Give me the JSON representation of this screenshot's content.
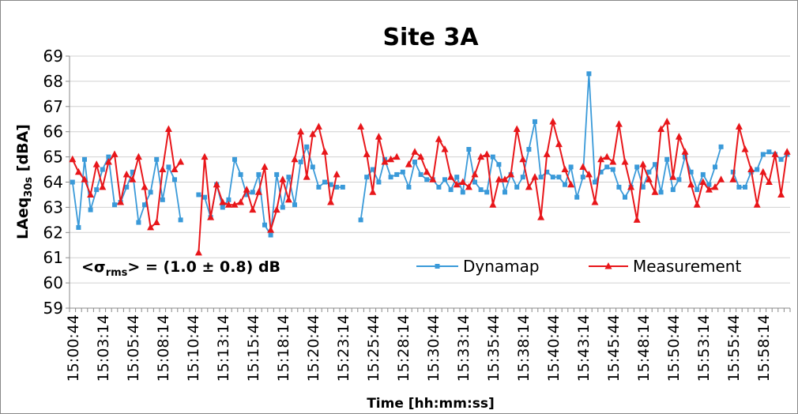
{
  "chart_data": {
    "type": "line",
    "title": "Site 3A",
    "x_label": "Time [hh:mm:ss]",
    "y_label": {
      "main": "LAeq",
      "sub": "30s",
      "unit": " [dBA]"
    },
    "annotation": {
      "pre": "<σ",
      "sub": "rms",
      "post": "> = (1.0 ± 0.8) dB"
    },
    "legend": "inside-bottom-right",
    "grid": true,
    "ylim": [
      59,
      69
    ],
    "yticks": [
      59,
      60,
      61,
      62,
      63,
      64,
      65,
      66,
      67,
      68,
      69
    ],
    "categories": [
      "15:00:44",
      null,
      null,
      null,
      null,
      "15:03:14",
      null,
      null,
      null,
      null,
      "15:05:44",
      null,
      null,
      null,
      null,
      "15:08:14",
      null,
      null,
      null,
      null,
      "15:10:44",
      null,
      null,
      null,
      null,
      "15:13:14",
      null,
      null,
      null,
      null,
      "15:15:44",
      null,
      null,
      null,
      null,
      "15:18:14",
      null,
      null,
      null,
      null,
      "15:20:44",
      null,
      null,
      null,
      null,
      "15:23:14",
      null,
      null,
      null,
      null,
      "15:25:44",
      null,
      null,
      null,
      null,
      "15:28:14",
      null,
      null,
      null,
      null,
      "15:30:44",
      null,
      null,
      null,
      null,
      "15:33:14",
      null,
      null,
      null,
      null,
      "15:35:44",
      null,
      null,
      null,
      null,
      "15:38:14",
      null,
      null,
      null,
      null,
      "15:40:44",
      null,
      null,
      null,
      null,
      "15:43:14",
      null,
      null,
      null,
      null,
      "15:45:44",
      null,
      null,
      null,
      null,
      "15:48:14",
      null,
      null,
      null,
      null,
      "15:50:44",
      null,
      null,
      null,
      null,
      "15:53:14",
      null,
      null,
      null,
      null,
      "15:55:44",
      null,
      null,
      null,
      null,
      "15:58:14",
      null,
      null,
      null,
      null
    ],
    "series": [
      {
        "name": "Dynamap",
        "color": "#3a9ad9",
        "marker": "square",
        "values": [
          64.0,
          62.2,
          64.9,
          62.9,
          63.7,
          64.5,
          65.0,
          63.1,
          63.2,
          63.8,
          64.4,
          62.4,
          63.1,
          63.6,
          64.9,
          63.3,
          64.6,
          64.1,
          62.5,
          null,
          null,
          63.5,
          63.4,
          62.6,
          63.9,
          63.0,
          63.3,
          64.9,
          64.3,
          63.5,
          63.6,
          64.3,
          62.3,
          61.9,
          64.3,
          63.0,
          64.2,
          63.1,
          64.8,
          65.4,
          64.6,
          63.8,
          64.0,
          63.9,
          63.8,
          63.8,
          null,
          null,
          62.5,
          64.2,
          64.5,
          64.0,
          64.9,
          64.2,
          64.3,
          64.4,
          63.8,
          64.8,
          64.3,
          64.1,
          64.1,
          63.8,
          64.1,
          63.7,
          64.2,
          63.6,
          65.3,
          64.0,
          63.7,
          63.6,
          65.0,
          64.7,
          63.6,
          64.3,
          63.8,
          64.2,
          65.3,
          66.4,
          64.2,
          64.4,
          64.2,
          64.2,
          63.9,
          64.6,
          63.4,
          64.2,
          68.3,
          64.0,
          64.4,
          64.6,
          64.5,
          63.8,
          63.4,
          63.8,
          64.6,
          63.8,
          64.4,
          64.7,
          63.6,
          64.9,
          63.7,
          64.1,
          65.0,
          64.4,
          63.7,
          64.3,
          63.9,
          64.6,
          65.4,
          null,
          64.4,
          63.8,
          63.8,
          64.4,
          64.5,
          65.1,
          65.2,
          65.1,
          64.9,
          65.1
        ]
      },
      {
        "name": "Measurement",
        "color": "#e8161a",
        "marker": "triangle",
        "values": [
          64.9,
          64.4,
          64.1,
          63.5,
          64.7,
          63.8,
          64.8,
          65.1,
          63.2,
          64.3,
          64.1,
          65.0,
          63.8,
          62.2,
          62.4,
          64.5,
          66.1,
          64.5,
          64.8,
          null,
          null,
          61.2,
          65.0,
          62.6,
          63.9,
          63.2,
          63.1,
          63.1,
          63.2,
          63.7,
          62.9,
          63.6,
          64.6,
          62.1,
          62.9,
          64.1,
          63.3,
          64.9,
          66.0,
          64.2,
          65.9,
          66.2,
          65.2,
          63.2,
          64.3,
          null,
          null,
          null,
          66.2,
          65.1,
          63.6,
          65.8,
          64.8,
          64.9,
          65.0,
          null,
          64.7,
          65.2,
          65.0,
          64.4,
          64.1,
          65.7,
          65.3,
          64.2,
          63.9,
          64.0,
          63.8,
          64.3,
          65.0,
          65.1,
          63.1,
          64.1,
          64.1,
          64.3,
          66.1,
          64.9,
          63.8,
          64.2,
          62.6,
          65.1,
          66.4,
          65.5,
          64.5,
          63.9,
          null,
          64.6,
          64.3,
          63.2,
          64.9,
          65.0,
          64.8,
          66.3,
          64.8,
          63.8,
          62.5,
          64.7,
          64.1,
          63.6,
          66.1,
          66.4,
          64.2,
          65.8,
          65.2,
          63.9,
          63.1,
          64.0,
          63.7,
          63.8,
          64.1,
          null,
          64.1,
          66.2,
          65.3,
          64.5,
          63.1,
          64.4,
          64.0,
          65.1,
          63.5,
          65.2
        ]
      }
    ]
  }
}
